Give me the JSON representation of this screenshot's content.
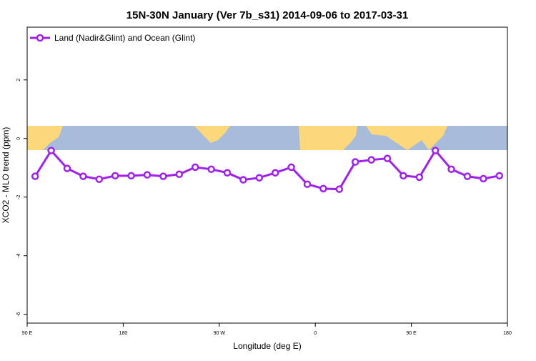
{
  "chart_data": {
    "type": "line",
    "title": "15N-30N January (Ver 7b_s31)   2014-09-06 to 2017-03-31",
    "x_label": "Longitude (deg E)",
    "y_label": "XCO2 - MLO trend (ppm)",
    "x": [
      97.5,
      112.5,
      127.5,
      142.5,
      157.5,
      172.5,
      187.5,
      202.5,
      217.5,
      232.5,
      247.5,
      262.5,
      277.5,
      292.5,
      307.5,
      322.5,
      337.5,
      352.5,
      367.5,
      382.5,
      397.5,
      412.5,
      427.5,
      442.5,
      457.5,
      472.5,
      487.5,
      502.5,
      517.5,
      532.5
    ],
    "series": [
      {
        "name": "Land (Nadir&Glint) and Ocean (Glint)",
        "color": "#a020f0",
        "values": [
          -1.29,
          -0.41,
          -1.02,
          -1.29,
          -1.39,
          -1.27,
          -1.27,
          -1.24,
          -1.29,
          -1.22,
          -0.98,
          -1.05,
          -1.17,
          -1.41,
          -1.34,
          -1.17,
          -0.98,
          -1.56,
          -1.71,
          -1.73,
          -0.8,
          -0.73,
          -0.68,
          -1.27,
          -1.32,
          -0.41,
          -1.05,
          -1.29,
          -1.37,
          -1.27
        ]
      }
    ],
    "xlim": [
      90,
      540
    ],
    "xticks": [
      {
        "value": 90,
        "label": "90 E"
      },
      180,
      {
        "value": 270,
        "label": "90 W"
      },
      {
        "value": 360,
        "label": "0"
      },
      {
        "value": 450,
        "label": "90 E"
      },
      {
        "value": 540,
        "label": "180"
      }
    ],
    "ylim": [
      -6.3,
      3.8
    ],
    "yticks": [
      -6,
      -4,
      -2,
      0,
      2
    ],
    "legend": "top-left"
  }
}
